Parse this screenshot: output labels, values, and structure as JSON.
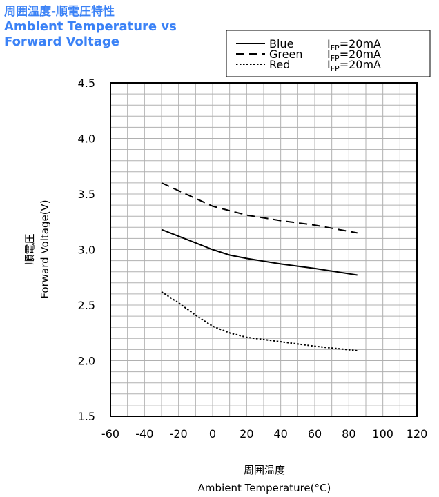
{
  "title": {
    "ja": "周囲温度-順電圧特性",
    "en_line1": "Ambient Temperature vs",
    "en_line2": "Forward Voltage"
  },
  "colors": {
    "title": "#3b82f6",
    "grid": "#b0b0b0",
    "axis": "#000000",
    "series": "#000000"
  },
  "chart_data": {
    "type": "line",
    "title": "周囲温度-順電圧特性 Ambient Temperature vs Forward Voltage",
    "xlabel_ja": "周囲温度",
    "xlabel": "Ambient Temperature(°C)",
    "ylabel_ja": "順電圧",
    "ylabel": "Forward Voltage(V)",
    "xlim": [
      -60,
      120
    ],
    "ylim": [
      1.5,
      4.5
    ],
    "xticks": [
      "-60",
      "-40",
      "-20",
      "0",
      "20",
      "40",
      "60",
      "80",
      "100",
      "120"
    ],
    "yticks": [
      "4.5",
      "4.0",
      "3.5",
      "3.0",
      "2.5",
      "2.0",
      "1.5"
    ],
    "xtick_values": [
      -60,
      -40,
      -20,
      0,
      20,
      40,
      60,
      80,
      100,
      120
    ],
    "ytick_values": [
      4.5,
      4.0,
      3.5,
      3.0,
      2.5,
      2.0,
      1.5
    ],
    "minor_x_step": 10,
    "minor_y_step": 0.1,
    "grid": true,
    "legend_position": "top-right",
    "series": [
      {
        "name": "Blue",
        "condition_base": "I",
        "condition_sub": "FP",
        "condition_value": "=20mA",
        "style": "solid",
        "x": [
          -30,
          -20,
          -10,
          0,
          10,
          20,
          40,
          60,
          85
        ],
        "y": [
          3.18,
          3.12,
          3.06,
          3.0,
          2.95,
          2.92,
          2.87,
          2.83,
          2.77
        ]
      },
      {
        "name": "Green",
        "condition_base": "I",
        "condition_sub": "FP",
        "condition_value": "=20mA",
        "style": "dashed",
        "x": [
          -30,
          -20,
          -10,
          0,
          10,
          20,
          40,
          60,
          85
        ],
        "y": [
          3.6,
          3.53,
          3.46,
          3.39,
          3.35,
          3.31,
          3.26,
          3.22,
          3.15
        ]
      },
      {
        "name": "Red",
        "condition_base": "I",
        "condition_sub": "FP",
        "condition_value": "=20mA",
        "style": "dotted",
        "x": [
          -30,
          -20,
          -10,
          0,
          10,
          20,
          40,
          60,
          85
        ],
        "y": [
          2.62,
          2.52,
          2.41,
          2.31,
          2.25,
          2.21,
          2.17,
          2.13,
          2.09
        ]
      }
    ]
  }
}
